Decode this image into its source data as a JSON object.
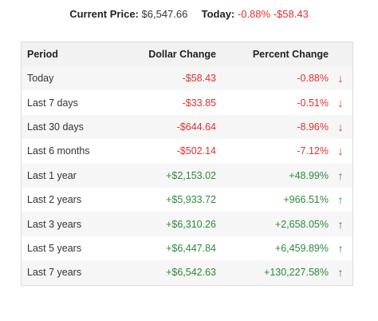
{
  "summary": {
    "price_label": "Current Price:",
    "price_value": "$6,547.66",
    "today_label": "Today:",
    "today_percent": "-0.88%",
    "today_dollar": "-$58.43"
  },
  "table": {
    "headers": [
      "Period",
      "Dollar Change",
      "Percent Change"
    ],
    "rows": [
      {
        "period": "Today",
        "dollar": "-$58.43",
        "percent": "-0.88%",
        "direction": "down",
        "arrow": "↓"
      },
      {
        "period": "Last 7 days",
        "dollar": "-$33.85",
        "percent": "-0.51%",
        "direction": "down",
        "arrow": "↓"
      },
      {
        "period": "Last 30 days",
        "dollar": "-$644.64",
        "percent": "-8.96%",
        "direction": "down",
        "arrow": "↓"
      },
      {
        "period": "Last 6 months",
        "dollar": "-$502.14",
        "percent": "-7.12%",
        "direction": "down",
        "arrow": "↓"
      },
      {
        "period": "Last 1 year",
        "dollar": "+$2,153.02",
        "percent": "+48.99%",
        "direction": "up",
        "arrow": "↑"
      },
      {
        "period": "Last 2 years",
        "dollar": "+$5,933.72",
        "percent": "+966.51%",
        "direction": "up",
        "arrow": "↑"
      },
      {
        "period": "Last 3 years",
        "dollar": "+$6,310.26",
        "percent": "+2,658.05%",
        "direction": "up",
        "arrow": "↑"
      },
      {
        "period": "Last 5 years",
        "dollar": "+$6,447.84",
        "percent": "+6,459.89%",
        "direction": "up",
        "arrow": "↑"
      },
      {
        "period": "Last 7 years",
        "dollar": "+$6,542.63",
        "percent": "+130,227.58%",
        "direction": "up",
        "arrow": "↑"
      }
    ]
  },
  "colors": {
    "negative": "#e0322d",
    "positive": "#2f8a3a"
  }
}
